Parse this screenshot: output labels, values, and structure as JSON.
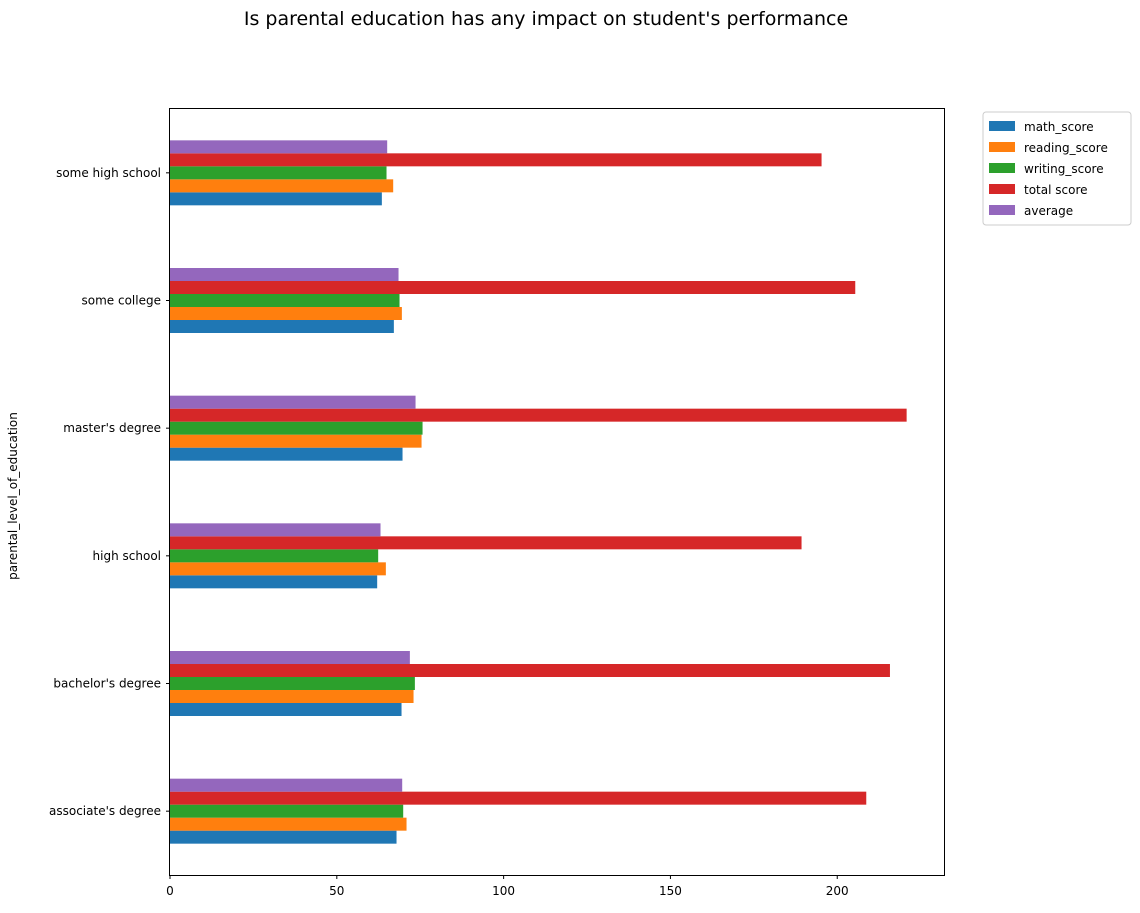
{
  "chart_data": {
    "type": "bar",
    "orientation": "horizontal",
    "title": "Is parental education has any impact on student's performance",
    "xlabel": "",
    "ylabel": "parental_level_of_education",
    "xlim": [
      0,
      232
    ],
    "xticks": [
      0,
      50,
      100,
      150,
      200
    ],
    "categories": [
      "associate's degree",
      "bachelor's degree",
      "high school",
      "master's degree",
      "some college",
      "some high school"
    ],
    "series": [
      {
        "name": "math_score",
        "color": "#1f77b4",
        "values": [
          67.9,
          69.4,
          62.1,
          69.7,
          67.1,
          63.5
        ]
      },
      {
        "name": "reading_score",
        "color": "#ff7f0e",
        "values": [
          70.9,
          73.0,
          64.7,
          75.4,
          69.5,
          66.9
        ]
      },
      {
        "name": "writing_score",
        "color": "#2ca02c",
        "values": [
          69.9,
          73.4,
          62.4,
          75.7,
          68.8,
          64.9
        ]
      },
      {
        "name": "total score",
        "color": "#d62728",
        "values": [
          208.7,
          215.8,
          189.3,
          220.8,
          205.4,
          195.3
        ]
      },
      {
        "name": "average",
        "color": "#9467bd",
        "values": [
          69.6,
          71.9,
          63.1,
          73.6,
          68.5,
          65.1
        ]
      }
    ],
    "legend_position": "outside-top-right",
    "grid": false
  }
}
